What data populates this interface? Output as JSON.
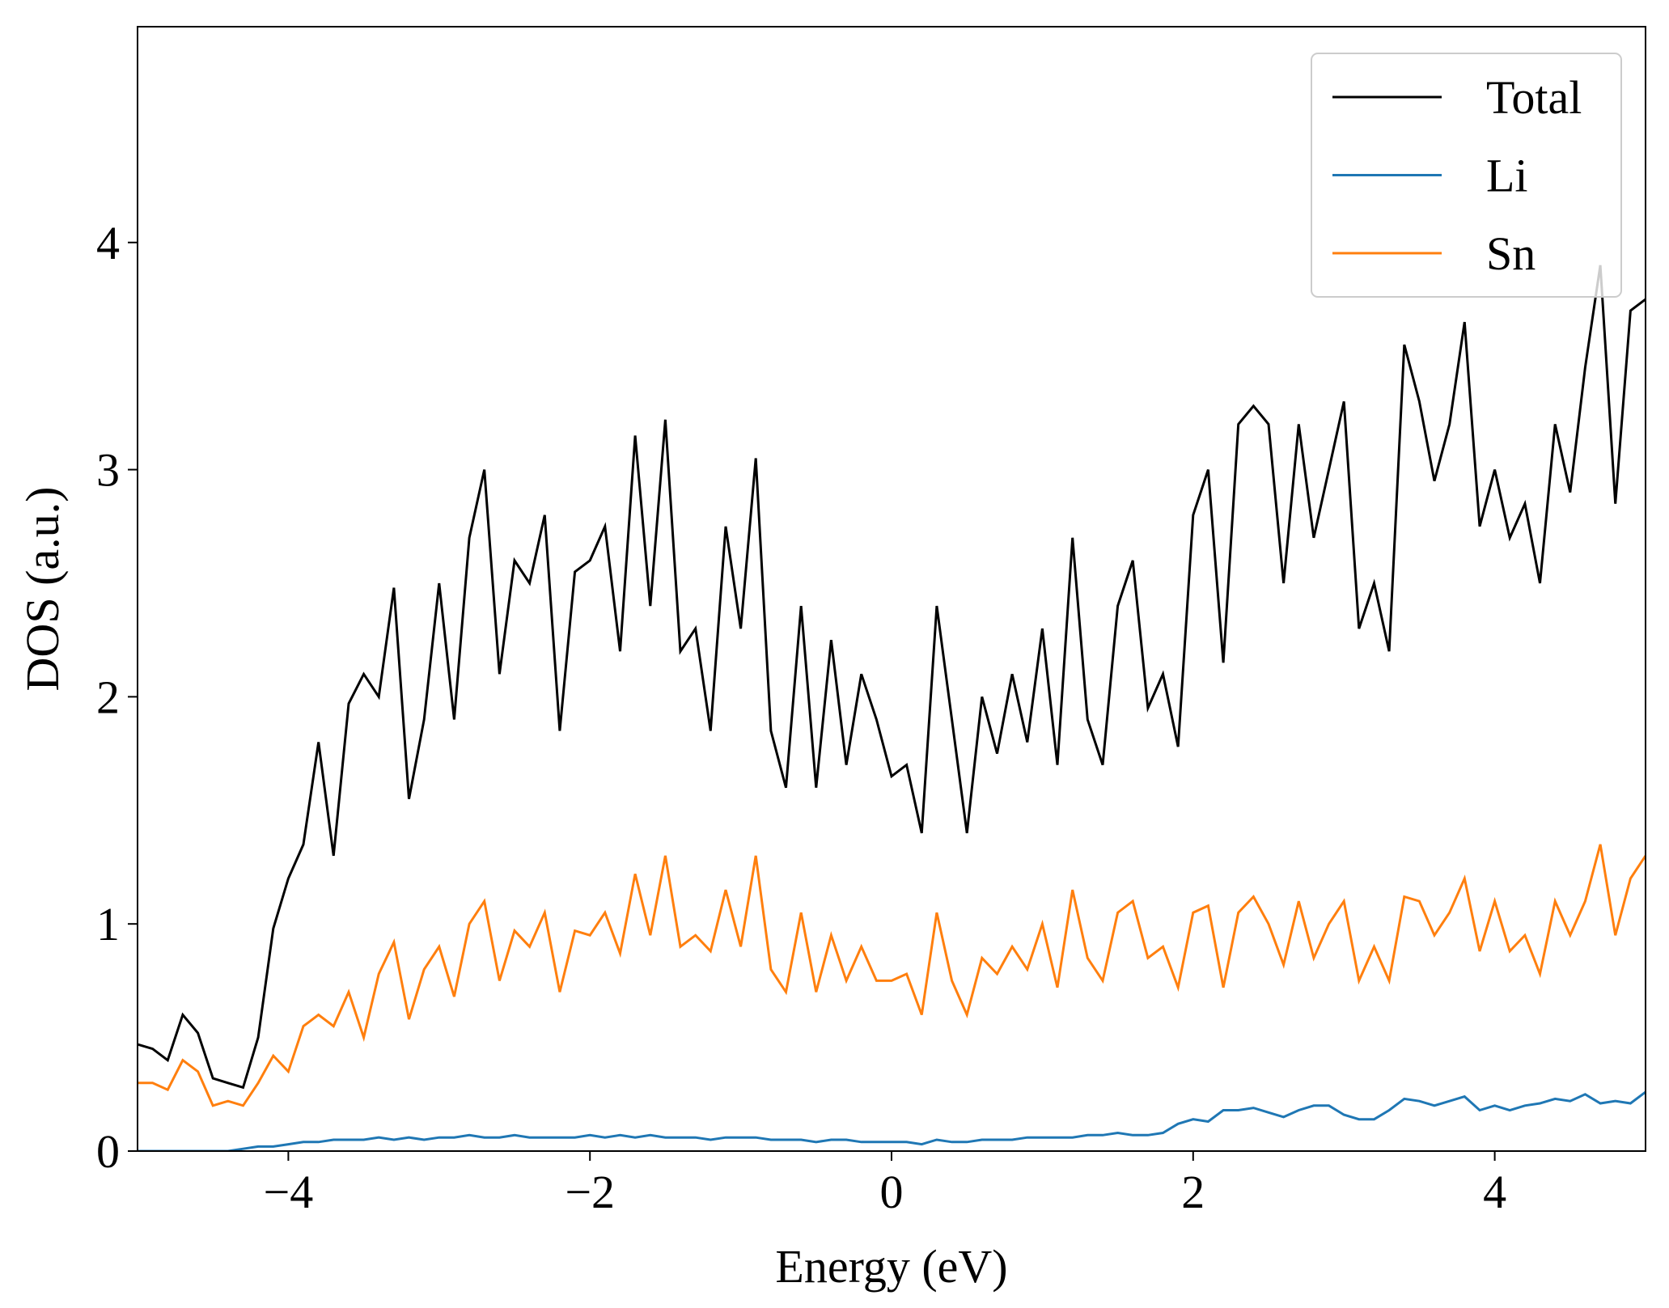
{
  "chart_data": {
    "type": "line",
    "xlabel": "Energy (eV)",
    "ylabel": "DOS (a.u.)",
    "xlim": [
      -5,
      5
    ],
    "ylim": [
      0,
      4.95
    ],
    "xticks": [
      {
        "value": -4,
        "label": "−4"
      },
      {
        "value": -2,
        "label": "−2"
      },
      0,
      2,
      4
    ],
    "yticks": [
      0,
      1,
      2,
      3,
      4
    ],
    "legend": "upper right",
    "x": [
      -5.0,
      -4.9,
      -4.8,
      -4.7,
      -4.6,
      -4.5,
      -4.4,
      -4.3,
      -4.2,
      -4.1,
      -4.0,
      -3.9,
      -3.8,
      -3.7,
      -3.6,
      -3.5,
      -3.4,
      -3.3,
      -3.2,
      -3.1,
      -3.0,
      -2.9,
      -2.8,
      -2.7,
      -2.6,
      -2.5,
      -2.4,
      -2.3,
      -2.2,
      -2.1,
      -2.0,
      -1.9,
      -1.8,
      -1.7,
      -1.6,
      -1.5,
      -1.4,
      -1.3,
      -1.2,
      -1.1,
      -1.0,
      -0.9,
      -0.8,
      -0.7,
      -0.6,
      -0.5,
      -0.4,
      -0.3,
      -0.2,
      -0.1,
      0.0,
      0.1,
      0.2,
      0.3,
      0.4,
      0.5,
      0.6,
      0.7,
      0.8,
      0.9,
      1.0,
      1.1,
      1.2,
      1.3,
      1.4,
      1.5,
      1.6,
      1.7,
      1.8,
      1.9,
      2.0,
      2.1,
      2.2,
      2.3,
      2.4,
      2.5,
      2.6,
      2.7,
      2.8,
      2.9,
      3.0,
      3.1,
      3.2,
      3.3,
      3.4,
      3.5,
      3.6,
      3.7,
      3.8,
      3.9,
      4.0,
      4.1,
      4.2,
      4.3,
      4.4,
      4.5,
      4.6,
      4.7,
      4.8,
      4.9,
      5.0
    ],
    "series": [
      {
        "name": "Total",
        "color": "#000000",
        "values": [
          0.47,
          0.45,
          0.4,
          0.6,
          0.52,
          0.32,
          0.3,
          0.28,
          0.5,
          0.98,
          1.2,
          1.35,
          1.8,
          1.3,
          1.97,
          2.1,
          2.0,
          2.48,
          1.55,
          1.9,
          2.5,
          1.9,
          2.7,
          3.0,
          2.1,
          2.6,
          2.5,
          2.8,
          1.85,
          2.55,
          2.6,
          2.75,
          2.2,
          3.15,
          2.4,
          3.22,
          2.2,
          2.3,
          1.85,
          2.75,
          2.3,
          3.05,
          1.85,
          1.6,
          2.4,
          1.6,
          2.25,
          1.7,
          2.1,
          1.9,
          1.65,
          1.7,
          1.4,
          2.4,
          1.9,
          1.4,
          2.0,
          1.75,
          2.1,
          1.8,
          2.3,
          1.7,
          2.7,
          1.9,
          1.7,
          2.4,
          2.6,
          1.95,
          2.1,
          1.78,
          2.8,
          3.0,
          2.15,
          3.2,
          3.28,
          3.2,
          2.5,
          3.2,
          2.7,
          3.0,
          3.3,
          2.3,
          2.5,
          2.2,
          3.55,
          3.3,
          2.95,
          3.2,
          3.65,
          2.75,
          3.0,
          2.7,
          2.85,
          2.5,
          3.2,
          2.9,
          3.45,
          3.9,
          2.85,
          3.7,
          3.75
        ]
      },
      {
        "name": "Li",
        "color": "#1f77b4",
        "values": [
          0.0,
          0.0,
          0.0,
          0.0,
          0.0,
          0.0,
          0.0,
          0.01,
          0.02,
          0.02,
          0.03,
          0.04,
          0.04,
          0.05,
          0.05,
          0.05,
          0.06,
          0.05,
          0.06,
          0.05,
          0.06,
          0.06,
          0.07,
          0.06,
          0.06,
          0.07,
          0.06,
          0.06,
          0.06,
          0.06,
          0.07,
          0.06,
          0.07,
          0.06,
          0.07,
          0.06,
          0.06,
          0.06,
          0.05,
          0.06,
          0.06,
          0.06,
          0.05,
          0.05,
          0.05,
          0.04,
          0.05,
          0.05,
          0.04,
          0.04,
          0.04,
          0.04,
          0.03,
          0.05,
          0.04,
          0.04,
          0.05,
          0.05,
          0.05,
          0.06,
          0.06,
          0.06,
          0.06,
          0.07,
          0.07,
          0.08,
          0.07,
          0.07,
          0.08,
          0.12,
          0.14,
          0.13,
          0.18,
          0.18,
          0.19,
          0.17,
          0.15,
          0.18,
          0.2,
          0.2,
          0.16,
          0.14,
          0.14,
          0.18,
          0.23,
          0.22,
          0.2,
          0.22,
          0.24,
          0.18,
          0.2,
          0.18,
          0.2,
          0.21,
          0.23,
          0.22,
          0.25,
          0.21,
          0.22,
          0.21,
          0.26
        ]
      },
      {
        "name": "Sn",
        "color": "#ff7f0e",
        "values": [
          0.3,
          0.3,
          0.27,
          0.4,
          0.35,
          0.2,
          0.22,
          0.2,
          0.3,
          0.42,
          0.35,
          0.55,
          0.6,
          0.55,
          0.7,
          0.5,
          0.78,
          0.92,
          0.58,
          0.8,
          0.9,
          0.68,
          1.0,
          1.1,
          0.75,
          0.97,
          0.9,
          1.05,
          0.7,
          0.97,
          0.95,
          1.05,
          0.87,
          1.22,
          0.95,
          1.3,
          0.9,
          0.95,
          0.88,
          1.15,
          0.9,
          1.3,
          0.8,
          0.7,
          1.05,
          0.7,
          0.95,
          0.75,
          0.9,
          0.75,
          0.75,
          0.78,
          0.6,
          1.05,
          0.75,
          0.6,
          0.85,
          0.78,
          0.9,
          0.8,
          1.0,
          0.72,
          1.15,
          0.85,
          0.75,
          1.05,
          1.1,
          0.85,
          0.9,
          0.72,
          1.05,
          1.08,
          0.72,
          1.05,
          1.12,
          1.0,
          0.82,
          1.1,
          0.85,
          1.0,
          1.1,
          0.75,
          0.9,
          0.75,
          1.12,
          1.1,
          0.95,
          1.05,
          1.2,
          0.88,
          1.1,
          0.88,
          0.95,
          0.78,
          1.1,
          0.95,
          1.1,
          1.35,
          0.95,
          1.2,
          1.3
        ]
      }
    ]
  }
}
